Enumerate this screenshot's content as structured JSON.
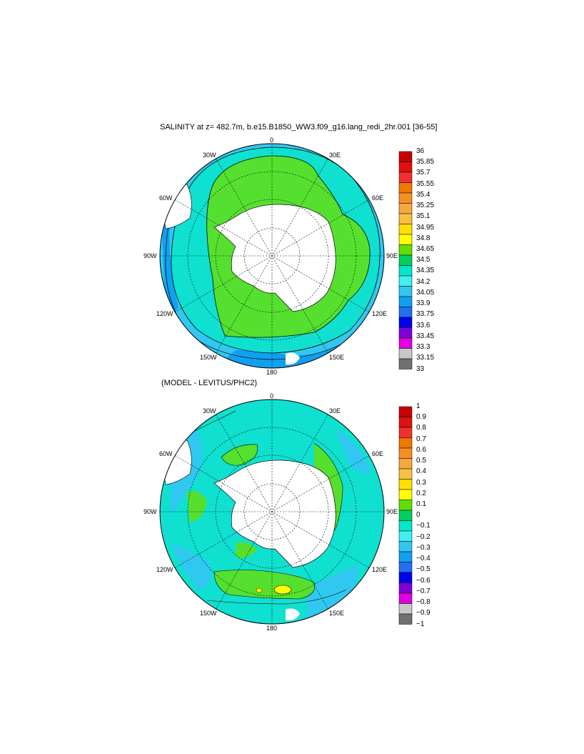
{
  "panels": [
    {
      "title": "SALINITY at z= 482.7m, b.e15.B1850_WW3.f09_g16.lang_redi_2hr.001 [36-55]",
      "lon_labels": {
        "top": "0",
        "ne": "30E",
        "ene": "60E",
        "e": "90E",
        "ese": "120E",
        "se": "150E",
        "bottom": "180",
        "sw": "150W",
        "wsw": "120W",
        "w": "90W",
        "wnw": "60W",
        "nw": "30W"
      },
      "colorbar": {
        "labels": [
          "36",
          "35.85",
          "35.7",
          "35.55",
          "35.4",
          "35.25",
          "35.1",
          "34.95",
          "34.8",
          "34.65",
          "34.5",
          "34.35",
          "34.2",
          "34.05",
          "33.9",
          "33.75",
          "33.6",
          "33.45",
          "33.3",
          "33.15",
          "33"
        ]
      }
    },
    {
      "title": "(MODEL - LEVITUS/PHC2)",
      "lon_labels": {
        "top": "0",
        "ne": "30E",
        "ene": "60E",
        "e": "90E",
        "ese": "120E",
        "se": "150E",
        "bottom": "180",
        "sw": "150W",
        "wsw": "120W",
        "w": "90W",
        "wnw": "60W",
        "nw": "30W"
      },
      "colorbar": {
        "labels": [
          "1",
          "0.9",
          "0.8",
          "0.7",
          "0.6",
          "0.5",
          "0.4",
          "0.3",
          "0.2",
          "0.1",
          "0",
          "−0.1",
          "−0.2",
          "−0.3",
          "−0.4",
          "−0.5",
          "−0.6",
          "−0.7",
          "−0.8",
          "−0.9",
          "−1"
        ]
      }
    }
  ],
  "colorbar_colors": [
    "#c80000",
    "#e01010",
    "#f03030",
    "#f07800",
    "#f59020",
    "#f5a840",
    "#f8c040",
    "#ffe000",
    "#ffff00",
    "#60e000",
    "#00d060",
    "#00e8c8",
    "#40f0f0",
    "#30c8f0",
    "#10a0f0",
    "#2070f0",
    "#0000f0",
    "#8000d8",
    "#e000e0",
    "#c8c8c8",
    "#707070"
  ],
  "colors": {
    "land": "#ffffff",
    "green": "#55e030",
    "cyan": "#10e0d0",
    "lightblue": "#30c8f0",
    "blue": "#10a0f0",
    "yellow": "#ffff00"
  }
}
